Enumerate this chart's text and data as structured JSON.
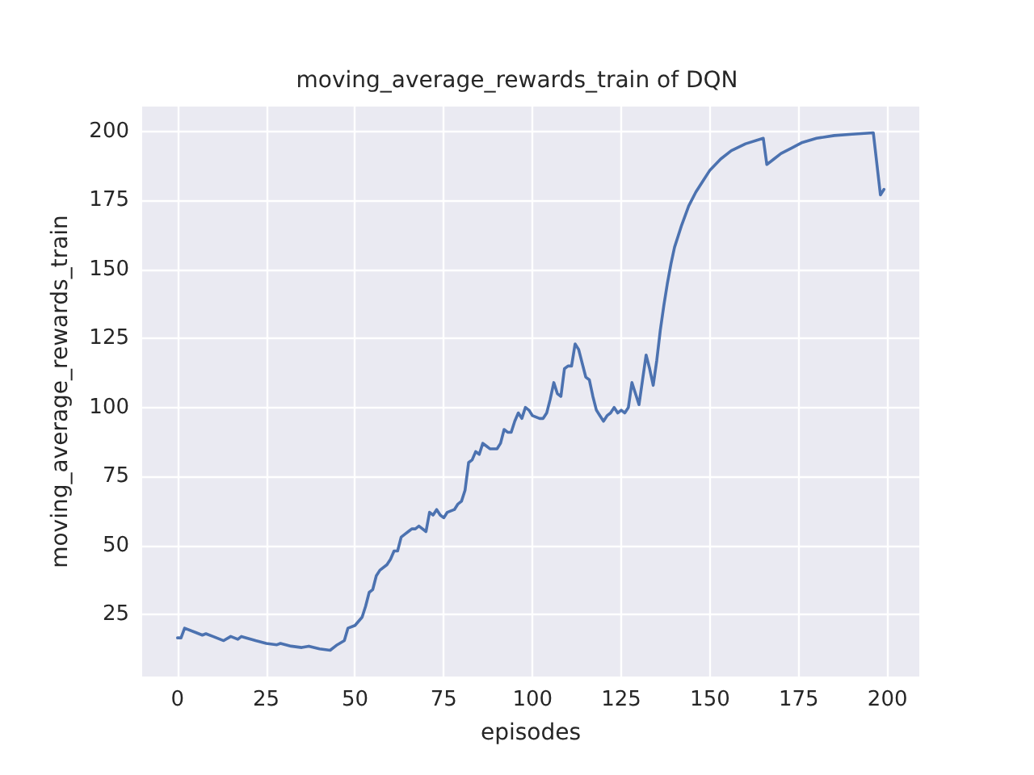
{
  "chart_data": {
    "type": "line",
    "title": "moving_average_rewards_train of DQN",
    "xlabel": "episodes",
    "ylabel": "moving_average_rewards_train",
    "xlim": [
      -9.95,
      208.95
    ],
    "ylim": [
      2.5,
      209
    ],
    "xticks": [
      0,
      25,
      50,
      75,
      100,
      125,
      150,
      175,
      200
    ],
    "yticks": [
      25,
      50,
      75,
      100,
      125,
      150,
      175,
      200
    ],
    "grid": true,
    "marker": "none",
    "line_style": "solid",
    "series": [
      {
        "color": "#4c72b0",
        "x": [
          0,
          1,
          2,
          5,
          7,
          8,
          10,
          13,
          15,
          17,
          18,
          22,
          25,
          28,
          29,
          32,
          35,
          37,
          40,
          43,
          45,
          47,
          48,
          50,
          52,
          53,
          54,
          55,
          56,
          57,
          59,
          60,
          61,
          62,
          63,
          64,
          65,
          66,
          67,
          68,
          70,
          71,
          72,
          73,
          74,
          75,
          76,
          78,
          79,
          80,
          81,
          82,
          83,
          84,
          85,
          86,
          87,
          88,
          90,
          91,
          92,
          93,
          94,
          95,
          96,
          97,
          98,
          99,
          100,
          102,
          103,
          104,
          105,
          106,
          107,
          108,
          109,
          110,
          111,
          112,
          113,
          114,
          115,
          116,
          117,
          118,
          119,
          120,
          121,
          122,
          123,
          124,
          125,
          126,
          127,
          128,
          129,
          130,
          131,
          132,
          133,
          134,
          135,
          136,
          137,
          138,
          139,
          140,
          142,
          144,
          146,
          148,
          150,
          153,
          156,
          160,
          165,
          166,
          168,
          170,
          173,
          176,
          180,
          185,
          190,
          196,
          198,
          199
        ],
        "values": [
          16.5,
          16.5,
          20,
          18.5,
          17.5,
          18,
          17,
          15.5,
          17,
          16,
          17,
          15.5,
          14.5,
          14,
          14.5,
          13.5,
          13,
          13.5,
          12.5,
          12,
          14,
          15.5,
          20,
          21,
          24,
          28,
          33,
          34,
          39,
          41,
          43,
          45,
          48,
          48,
          53,
          54,
          55,
          56,
          56,
          57,
          55,
          62,
          61,
          63,
          61,
          60,
          62,
          63,
          65,
          66,
          70,
          80,
          81,
          84,
          83,
          87,
          86,
          85,
          85,
          87,
          92,
          91,
          91,
          95,
          98,
          96,
          100,
          99,
          97,
          96,
          96,
          98,
          103,
          109,
          105,
          104,
          114,
          115,
          115,
          123,
          121,
          116,
          111,
          110,
          104,
          99,
          97,
          95,
          97,
          98,
          100,
          98,
          99,
          98,
          100,
          109,
          105,
          101,
          110,
          119,
          114,
          108,
          117,
          128,
          137,
          145,
          152,
          158,
          166,
          173,
          178,
          182,
          186,
          190,
          193,
          195.5,
          197.5,
          188,
          190,
          192,
          194,
          196,
          197.5,
          198.5,
          199,
          199.5,
          177,
          179
        ]
      }
    ]
  }
}
